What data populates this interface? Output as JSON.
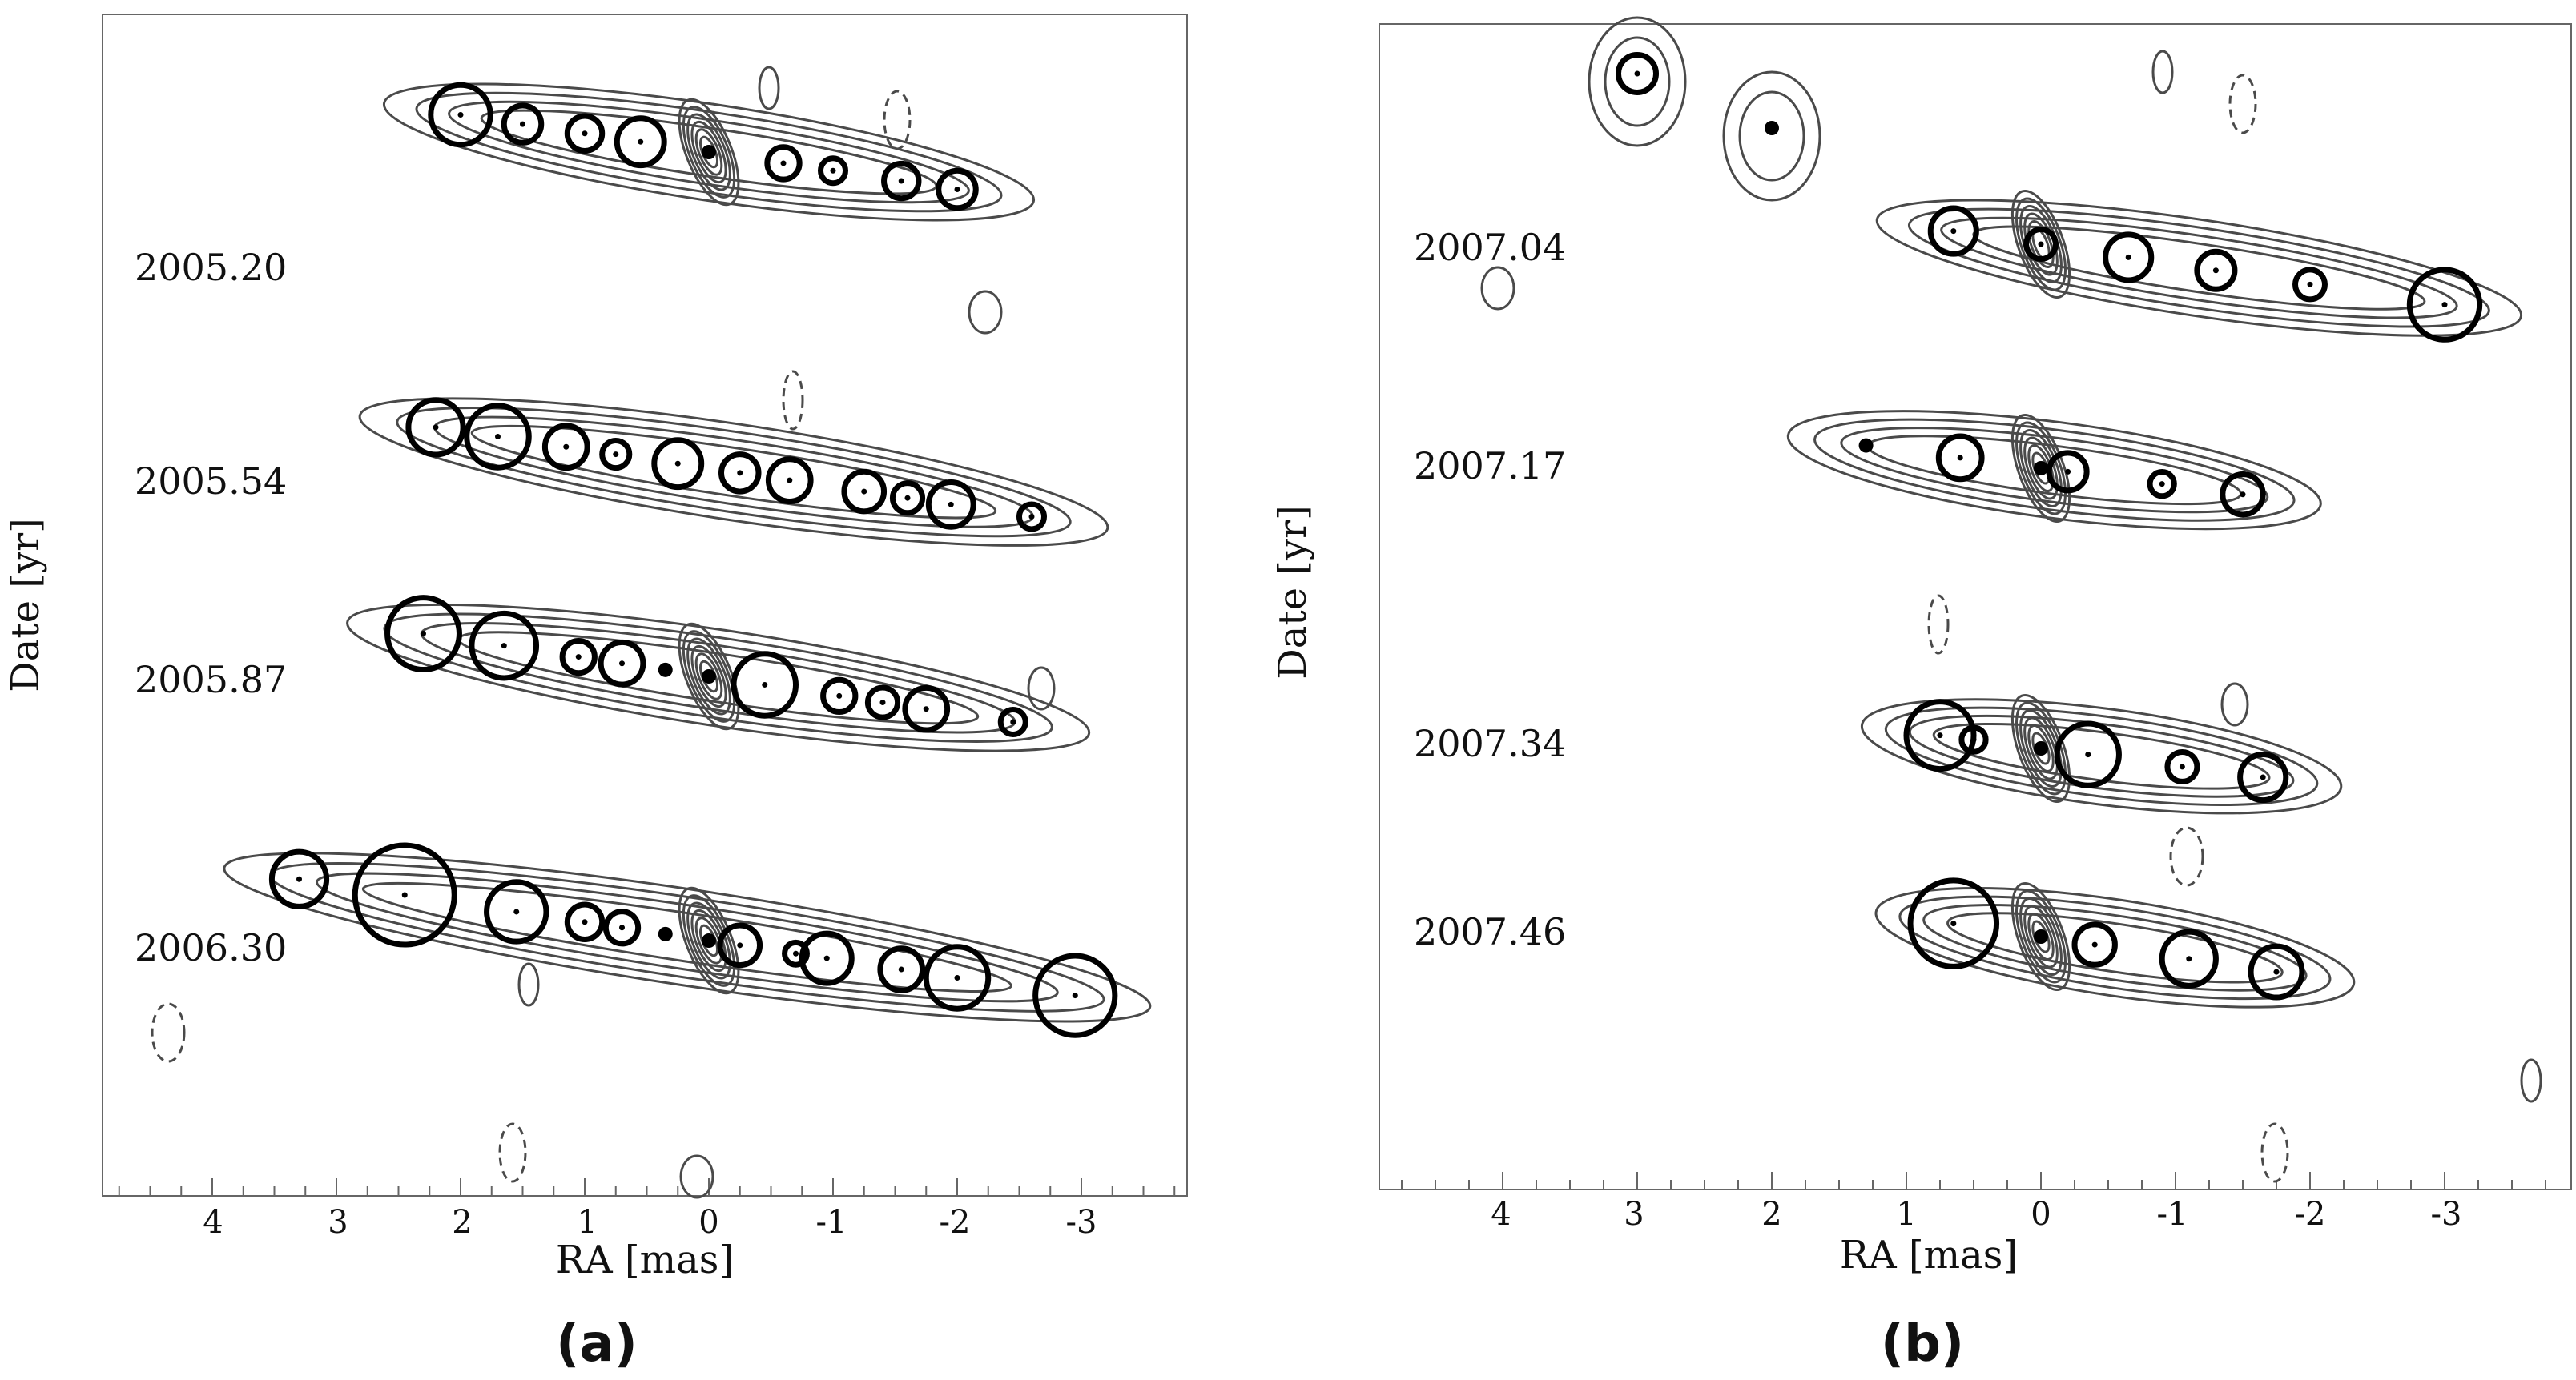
{
  "figure": {
    "panels": [
      {
        "id": "a",
        "caption": "(a)",
        "xlabel": "RA [mas]",
        "ylabel": "Date [yr]",
        "tick_labels": [
          "4",
          "3",
          "2",
          "1",
          "0",
          "-1",
          "-2",
          "-3"
        ],
        "epochs": [
          {
            "label": "2005.20",
            "components": [
              {
                "ra": 2.0,
                "r": 0.24
              },
              {
                "ra": 1.5,
                "r": 0.15
              },
              {
                "ra": 1.0,
                "r": 0.14
              },
              {
                "ra": 0.55,
                "r": 0.19
              },
              {
                "ra": 0.0,
                "r": 0.06
              },
              {
                "ra": -0.6,
                "r": 0.13
              },
              {
                "ra": -1.0,
                "r": 0.1
              },
              {
                "ra": -1.55,
                "r": 0.14
              },
              {
                "ra": -2.0,
                "r": 0.15
              }
            ]
          },
          {
            "label": "2005.54",
            "components": [
              {
                "ra": 2.2,
                "r": 0.22
              },
              {
                "ra": 1.7,
                "r": 0.25
              },
              {
                "ra": 1.15,
                "r": 0.17
              },
              {
                "ra": 0.75,
                "r": 0.11
              },
              {
                "ra": 0.25,
                "r": 0.19
              },
              {
                "ra": -0.25,
                "r": 0.15
              },
              {
                "ra": -0.65,
                "r": 0.17
              },
              {
                "ra": -1.25,
                "r": 0.16
              },
              {
                "ra": -1.6,
                "r": 0.12
              },
              {
                "ra": -1.95,
                "r": 0.18
              },
              {
                "ra": -2.6,
                "r": 0.1
              }
            ]
          },
          {
            "label": "2005.87",
            "components": [
              {
                "ra": 2.3,
                "r": 0.29
              },
              {
                "ra": 1.65,
                "r": 0.26
              },
              {
                "ra": 1.05,
                "r": 0.13
              },
              {
                "ra": 0.7,
                "r": 0.17
              },
              {
                "ra": 0.35,
                "r": 0.06
              },
              {
                "ra": 0.0,
                "r": 0.06
              },
              {
                "ra": -0.45,
                "r": 0.25
              },
              {
                "ra": -1.05,
                "r": 0.13
              },
              {
                "ra": -1.4,
                "r": 0.12
              },
              {
                "ra": -1.75,
                "r": 0.17
              },
              {
                "ra": -2.45,
                "r": 0.1
              }
            ]
          },
          {
            "label": "2006.30",
            "components": [
              {
                "ra": 3.3,
                "r": 0.22
              },
              {
                "ra": 2.45,
                "r": 0.4
              },
              {
                "ra": 1.55,
                "r": 0.24
              },
              {
                "ra": 1.0,
                "r": 0.14
              },
              {
                "ra": 0.7,
                "r": 0.13
              },
              {
                "ra": 0.35,
                "r": 0.06
              },
              {
                "ra": 0.0,
                "r": 0.06
              },
              {
                "ra": -0.25,
                "r": 0.16
              },
              {
                "ra": -0.7,
                "r": 0.09
              },
              {
                "ra": -0.95,
                "r": 0.2
              },
              {
                "ra": -1.55,
                "r": 0.17
              },
              {
                "ra": -2.0,
                "r": 0.25
              },
              {
                "ra": -2.95,
                "r": 0.32
              }
            ]
          }
        ]
      },
      {
        "id": "b",
        "caption": "(b)",
        "xlabel": "RA [mas]",
        "ylabel": "Date [yr]",
        "tick_labels": [
          "4",
          "3",
          "2",
          "1",
          "0",
          "-1",
          "-2",
          "-3"
        ],
        "epochs": [
          {
            "label": "2007.04",
            "components": [
              {
                "ra": 0.65,
                "r": 0.17
              },
              {
                "ra": 0.0,
                "r": 0.11
              },
              {
                "ra": -0.65,
                "r": 0.17
              },
              {
                "ra": -1.3,
                "r": 0.14
              },
              {
                "ra": -2.0,
                "r": 0.11
              },
              {
                "ra": -3.0,
                "r": 0.26
              }
            ]
          },
          {
            "label": "2007.17",
            "components": [
              {
                "ra": 1.3,
                "r": 0.06
              },
              {
                "ra": 0.6,
                "r": 0.16
              },
              {
                "ra": 0.0,
                "r": 0.06
              },
              {
                "ra": -0.2,
                "r": 0.14
              },
              {
                "ra": -0.9,
                "r": 0.09
              },
              {
                "ra": -1.5,
                "r": 0.15
              }
            ]
          },
          {
            "label": "2007.34",
            "components": [
              {
                "ra": 0.75,
                "r": 0.25
              },
              {
                "ra": 0.5,
                "r": 0.09
              },
              {
                "ra": 0.0,
                "r": 0.06
              },
              {
                "ra": -0.35,
                "r": 0.23
              },
              {
                "ra": -1.05,
                "r": 0.11
              },
              {
                "ra": -1.65,
                "r": 0.17
              }
            ]
          },
          {
            "label": "2007.46",
            "components": [
              {
                "ra": 0.65,
                "r": 0.32
              },
              {
                "ra": 0.0,
                "r": 0.06
              },
              {
                "ra": -0.4,
                "r": 0.15
              },
              {
                "ra": -1.1,
                "r": 0.2
              },
              {
                "ra": -1.75,
                "r": 0.19
              }
            ]
          }
        ],
        "extra_components": [
          {
            "ra": 3.0,
            "r": 0.14
          },
          {
            "ra": 2.0,
            "r": 0.06
          }
        ]
      }
    ]
  }
}
